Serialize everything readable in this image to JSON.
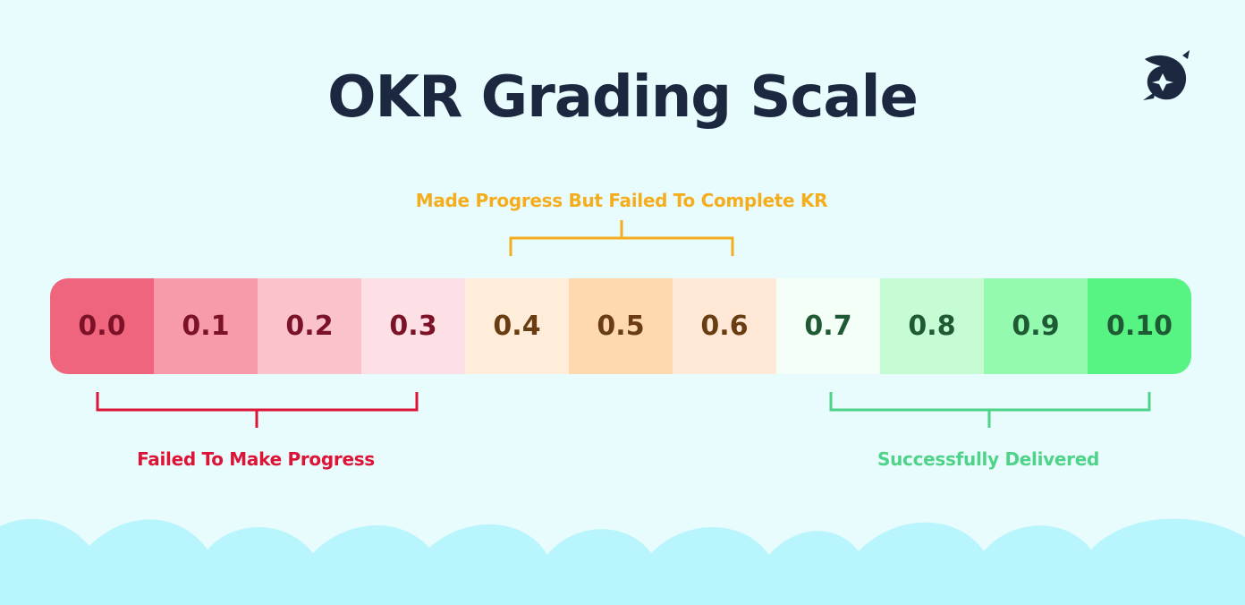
{
  "title": "OKR Grading Scale",
  "scale": {
    "cells": [
      {
        "label": "0.0",
        "bg": "#f0657e",
        "fg": "#7c1228"
      },
      {
        "label": "0.1",
        "bg": "#f79aa9",
        "fg": "#7c1228"
      },
      {
        "label": "0.2",
        "bg": "#fac3cc",
        "fg": "#7c1228"
      },
      {
        "label": "0.3",
        "bg": "#fde0e6",
        "fg": "#7c1228"
      },
      {
        "label": "0.4",
        "bg": "#ffecd9",
        "fg": "#6a3c12"
      },
      {
        "label": "0.5",
        "bg": "#fed8af",
        "fg": "#6a3c12"
      },
      {
        "label": "0.6",
        "bg": "#ffe9d6",
        "fg": "#6a3c12"
      },
      {
        "label": "0.7",
        "bg": "#f4fff7",
        "fg": "#1e5a34"
      },
      {
        "label": "0.8",
        "bg": "#c5fcd3",
        "fg": "#1e5a34"
      },
      {
        "label": "0.9",
        "bg": "#93fab0",
        "fg": "#1e5a34"
      },
      {
        "label": "0.10",
        "bg": "#58f483",
        "fg": "#1e5a34"
      }
    ]
  },
  "groups": {
    "made_progress": {
      "label": "Made Progress But Failed To Complete KR",
      "color": "#f4ae1d"
    },
    "failed": {
      "label": "Failed To Make Progress",
      "color": "#dd1436"
    },
    "success": {
      "label": "Successfully Delivered",
      "color": "#4fd389"
    }
  },
  "colors": {
    "background": "#e8fbfd",
    "clouds": "#b8f5fc",
    "title": "#1c2840"
  }
}
